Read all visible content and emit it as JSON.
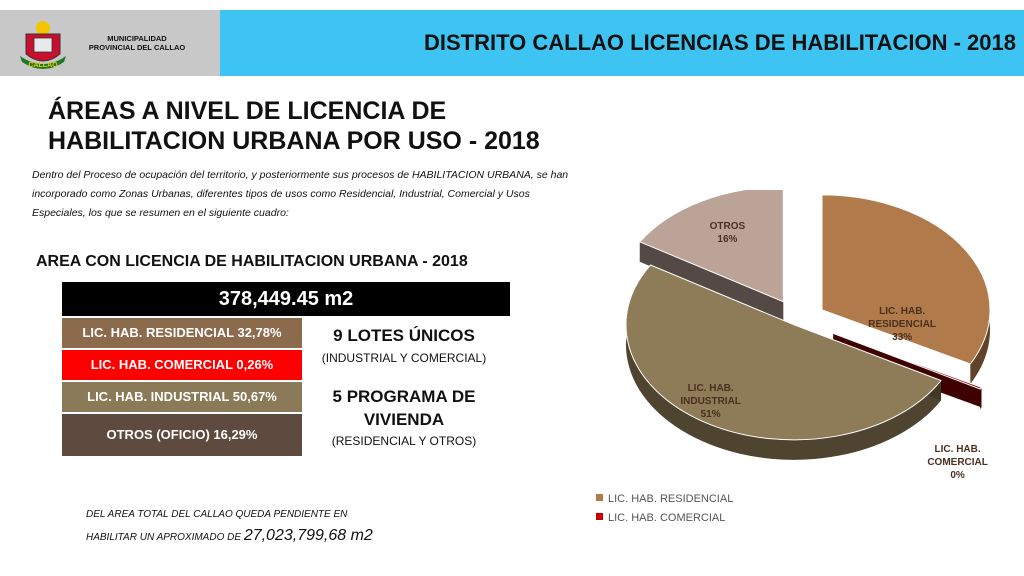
{
  "header": {
    "org_line1": "MUNICIPALIDAD",
    "org_line2": "PROVINCIAL DEL CALLAO",
    "logo_text": "CALLAO",
    "title": "DISTRITO CALLAO LICENCIAS DE HABILITACION - 2018"
  },
  "page": {
    "title_line1": "ÁREAS A NIVEL DE LICENCIA DE",
    "title_line2": "HABILITACION URBANA POR USO - 2018",
    "intro_line1": "Dentro del Proceso de ocupación del territorio, y posteriormente sus procesos de HABILITACION URBANA, se han",
    "intro_line2": "incorporado como Zonas Urbanas, diferentes tipos de usos como Residencial, Industrial, Comercial y Usos",
    "intro_line3": "Especiales, los que se resumen en el siguiente cuadro:"
  },
  "summary": {
    "title": "AREA CON LICENCIA DE HABILITACION URBANA - 2018",
    "total": "378,449.45 m2",
    "rows": [
      "LIC. HAB. RESIDENCIAL 32,78%",
      "LIC. HAB. COMERCIAL 0,26%",
      "LIC. HAB. INDUSTRIAL 50,67%",
      "OTROS (OFICIO) 16,29%"
    ],
    "lots_title": "9 LOTES ÚNICOS",
    "lots_sub": "(INDUSTRIAL Y COMERCIAL)",
    "program_line1": "5 PROGRAMA DE",
    "program_line2": "VIVIENDA",
    "program_sub": "(RESIDENCIAL Y OTROS)"
  },
  "footer": {
    "pending_line1": "DEL AREA TOTAL DEL CALLAO QUEDA PENDIENTE EN",
    "pending_line2": "HABILITAR UN APROXIMADO DE",
    "pending_value": "27,023,799,68 m2"
  },
  "chart_data": {
    "type": "pie",
    "title": "",
    "categories": [
      "LIC. HAB. RESIDENCIAL",
      "LIC. HAB. COMERCIAL",
      "LIC. HAB. INDUSTRIAL",
      "OTROS"
    ],
    "values": [
      32.78,
      0.26,
      50.67,
      16.29
    ],
    "labels": [
      [
        "LIC. HAB.",
        "RESIDENCIAL",
        "33%"
      ],
      [
        "LIC. HAB.",
        "COMERCIAL",
        "0%"
      ],
      [
        "LIC. HAB.",
        "INDUSTRIAL",
        "51%"
      ],
      [
        "OTROS",
        "16%"
      ]
    ],
    "colors": [
      "#b07a4a",
      "#8b0000",
      "#8e7b57",
      "#bba398"
    ],
    "exploded": true,
    "style": "3d",
    "legend": {
      "placement": "bottom-left",
      "entries": [
        "LIC. HAB. RESIDENCIAL",
        "LIC. HAB. COMERCIAL"
      ],
      "colors": [
        "#b07a4a",
        "#cc0000"
      ]
    }
  }
}
